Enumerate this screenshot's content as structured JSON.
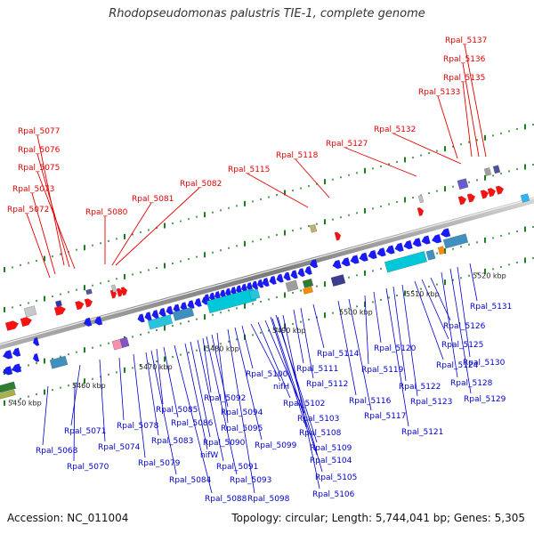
{
  "title": "Rhodopseudomonas palustris TIE-1, complete genome",
  "footer": {
    "accession": "Accession: NC_011004",
    "topology": "Topology: circular; Length: 5,744,041 bp; Genes: 5,305"
  },
  "colors": {
    "forward_label": "#e00000",
    "reverse_label": "#0000cc",
    "backbone": "#888888",
    "tick": "#1e7d1e",
    "forward_gene": "#ff1010",
    "reverse_gene": "#1a1aff"
  },
  "scale_labels": [
    "5450 kbp",
    "5460 kbp",
    "5470 kbp",
    "5480 kbp",
    "5490 kbp",
    "5500 kbp",
    "5510 kbp",
    "5520 kbp"
  ],
  "forward_labels": [
    "Rpal_5077",
    "Rpal_5076",
    "Rpal_5075",
    "Rpal_5073",
    "Rpal_5072",
    "Rpal_5080",
    "Rpal_5081",
    "Rpal_5082",
    "Rpal_5115",
    "Rpal_5118",
    "Rpal_5127",
    "Rpal_5132",
    "Rpal_5133",
    "Rpal_5135",
    "Rpal_5136",
    "Rpal_5137"
  ],
  "reverse_labels": [
    "Rpal_5068",
    "Rpal_5070",
    "Rpal_5071",
    "Rpal_5074",
    "Rpal_5078",
    "Rpal_5079",
    "Rpal_5083",
    "Rpal_5084",
    "Rpal_5085",
    "Rpal_5086",
    "Rpal_5088",
    "nifW",
    "Rpal_5090",
    "Rpal_5091",
    "Rpal_5092",
    "Rpal_5093",
    "Rpal_5094",
    "Rpal_5095",
    "Rpal_5098",
    "Rpal_5099",
    "Rpal_5100",
    "nifH",
    "Rpal_5102",
    "Rpal_5103",
    "Rpal_5104",
    "Rpal_5105",
    "Rpal_5106",
    "Rpal_5108",
    "Rpal_5109",
    "Rpal_5111",
    "Rpal_5112",
    "Rpal_5114",
    "Rpal_5116",
    "Rpal_5117",
    "Rpal_5119",
    "Rpal_5120",
    "Rpal_5121",
    "Rpal_5122",
    "Rpal_5123",
    "Rpal_5124",
    "Rpal_5125",
    "Rpal_5126",
    "Rpal_5128",
    "Rpal_5129",
    "Rpal_5130",
    "Rpal_5131"
  ]
}
